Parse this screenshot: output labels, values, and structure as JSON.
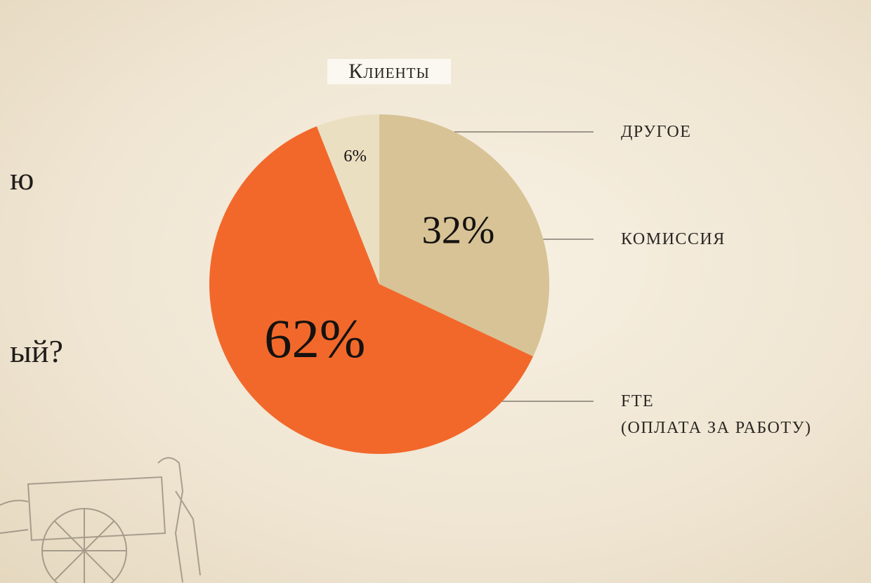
{
  "chart_data": {
    "type": "pie",
    "title": "Клиенты",
    "categories": [
      "КОМИССИЯ",
      "FTE\n(ОПЛАТА ЗА РАБОТУ)",
      "ДРУГОЕ"
    ],
    "values": [
      32,
      62,
      6
    ],
    "value_labels": [
      "32%",
      "62%",
      "6%"
    ],
    "colors": [
      "#d8c396",
      "#f2682b",
      "#ebdfc2"
    ]
  },
  "fragments": [
    "ю",
    "ый?"
  ]
}
